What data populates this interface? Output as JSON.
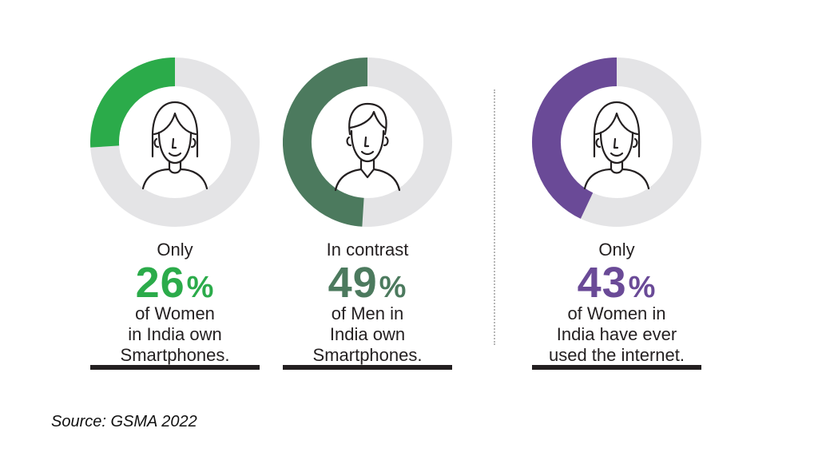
{
  "chart_data": [
    {
      "type": "pie",
      "intro": "Only",
      "value": 26,
      "unit": "%",
      "description": [
        "of Women",
        "in India own",
        "Smartphones."
      ],
      "color": "#2bab4a",
      "figure": "woman-icon"
    },
    {
      "type": "pie",
      "intro": "In contrast",
      "value": 49,
      "unit": "%",
      "description": [
        "of Men in",
        "India own",
        "Smartphones."
      ],
      "color": "#4c7a5e",
      "figure": "man-icon"
    },
    {
      "type": "pie",
      "intro": "Only",
      "value": 43,
      "unit": "%",
      "description": [
        "of Women in",
        "India have ever",
        "used the internet."
      ],
      "color": "#6a4a97",
      "figure": "woman-icon"
    }
  ],
  "colors": {
    "track": "#e4e4e6",
    "text": "#231f20"
  },
  "source": "Source: GSMA 2022"
}
